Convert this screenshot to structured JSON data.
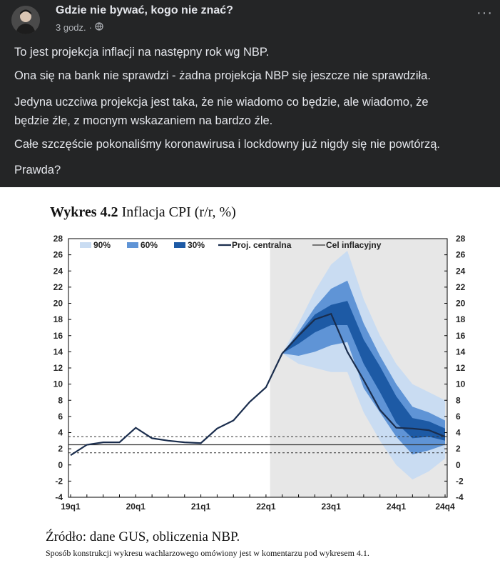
{
  "post": {
    "author": "Gdzie nie bywać, kogo nie znać?",
    "time": "3 godz.",
    "more": "···",
    "lines": [
      "To jest projekcja inflacji na następny rok wg NBP.",
      "Ona się na bank nie sprawdzi - żadna projekcja NBP się jeszcze nie sprawdziła.",
      "Jedyna uczciwa projekcja jest taka, że nie wiadomo co będzie, ale wiadomo, że",
      "będzie źle, z mocnym wskazaniem na bardzo źle.",
      "Całe szczęście pokonaliśmy koronawirusa i lockdowny już nigdy się nie powtórzą.",
      "Prawda?"
    ]
  },
  "chart_header": {
    "title_bold": "Wykres 4.2",
    "title_rest": " Inflacja CPI (r/r, %)"
  },
  "chart_data": {
    "type": "area",
    "title": "Wykres 4.2 Inflacja CPI (r/r, %)",
    "ylim": [
      -4,
      28
    ],
    "yticks": [
      -4,
      -2,
      0,
      2,
      4,
      6,
      8,
      10,
      12,
      14,
      16,
      18,
      20,
      22,
      24,
      26,
      28
    ],
    "x_tick_labels": [
      {
        "label": "19q1",
        "index": 0
      },
      {
        "label": "20q1",
        "index": 4
      },
      {
        "label": "21q1",
        "index": 8
      },
      {
        "label": "22q1",
        "index": 12
      },
      {
        "label": "23q1",
        "index": 16
      },
      {
        "label": "24q1",
        "index": 20
      },
      {
        "label": "24q4",
        "index": 23
      }
    ],
    "legend": [
      "90%",
      "60%",
      "30%",
      "Proj. centralna",
      "Cel inflacyjny"
    ],
    "colors": {
      "band90": "#c9dcf2",
      "band60": "#5f94d6",
      "band30": "#1d5aa5",
      "central": "#1a2d4d",
      "shade": "#e7e7e7"
    },
    "central": [
      1.2,
      2.5,
      2.8,
      2.8,
      4.6,
      3.3,
      3.0,
      2.8,
      2.7,
      4.5,
      5.5,
      7.8,
      9.6,
      13.8,
      16.0,
      18.0,
      18.7,
      14.0,
      10.5,
      6.8,
      4.6,
      4.5,
      4.3,
      3.5
    ],
    "fan_start_index": 13,
    "band90": {
      "upper": [
        13.8,
        17.5,
        21.5,
        24.8,
        26.5,
        20.5,
        16.0,
        12.5,
        10.0,
        9.0,
        8.0
      ],
      "lower": [
        13.8,
        12.5,
        12.0,
        11.5,
        11.5,
        6.5,
        3.0,
        0.0,
        -1.8,
        -0.8,
        0.8
      ]
    },
    "band60": {
      "upper": [
        13.8,
        16.5,
        19.5,
        21.8,
        22.8,
        17.5,
        13.5,
        10.0,
        7.2,
        6.5,
        5.5
      ],
      "lower": [
        13.8,
        13.5,
        14.0,
        14.8,
        15.2,
        9.5,
        6.5,
        3.5,
        1.3,
        1.8,
        2.5
      ]
    },
    "band30": {
      "upper": [
        13.8,
        16.2,
        18.6,
        19.8,
        20.3,
        15.5,
        12.2,
        8.5,
        5.8,
        5.4,
        4.5
      ],
      "lower": [
        13.8,
        15.0,
        16.4,
        17.3,
        17.3,
        12.5,
        9.0,
        5.2,
        3.3,
        3.5,
        3.0
      ]
    },
    "target": 2.5,
    "target_band": [
      1.5,
      3.5
    ],
    "shaded_from_index": 12.25,
    "grid": false
  },
  "source": "Źródło: dane GUS, obliczenia NBP.",
  "note": "Sposób konstrukcji wykresu wachlarzowego omówiony jest w komentarzu pod wykresem 4.1."
}
